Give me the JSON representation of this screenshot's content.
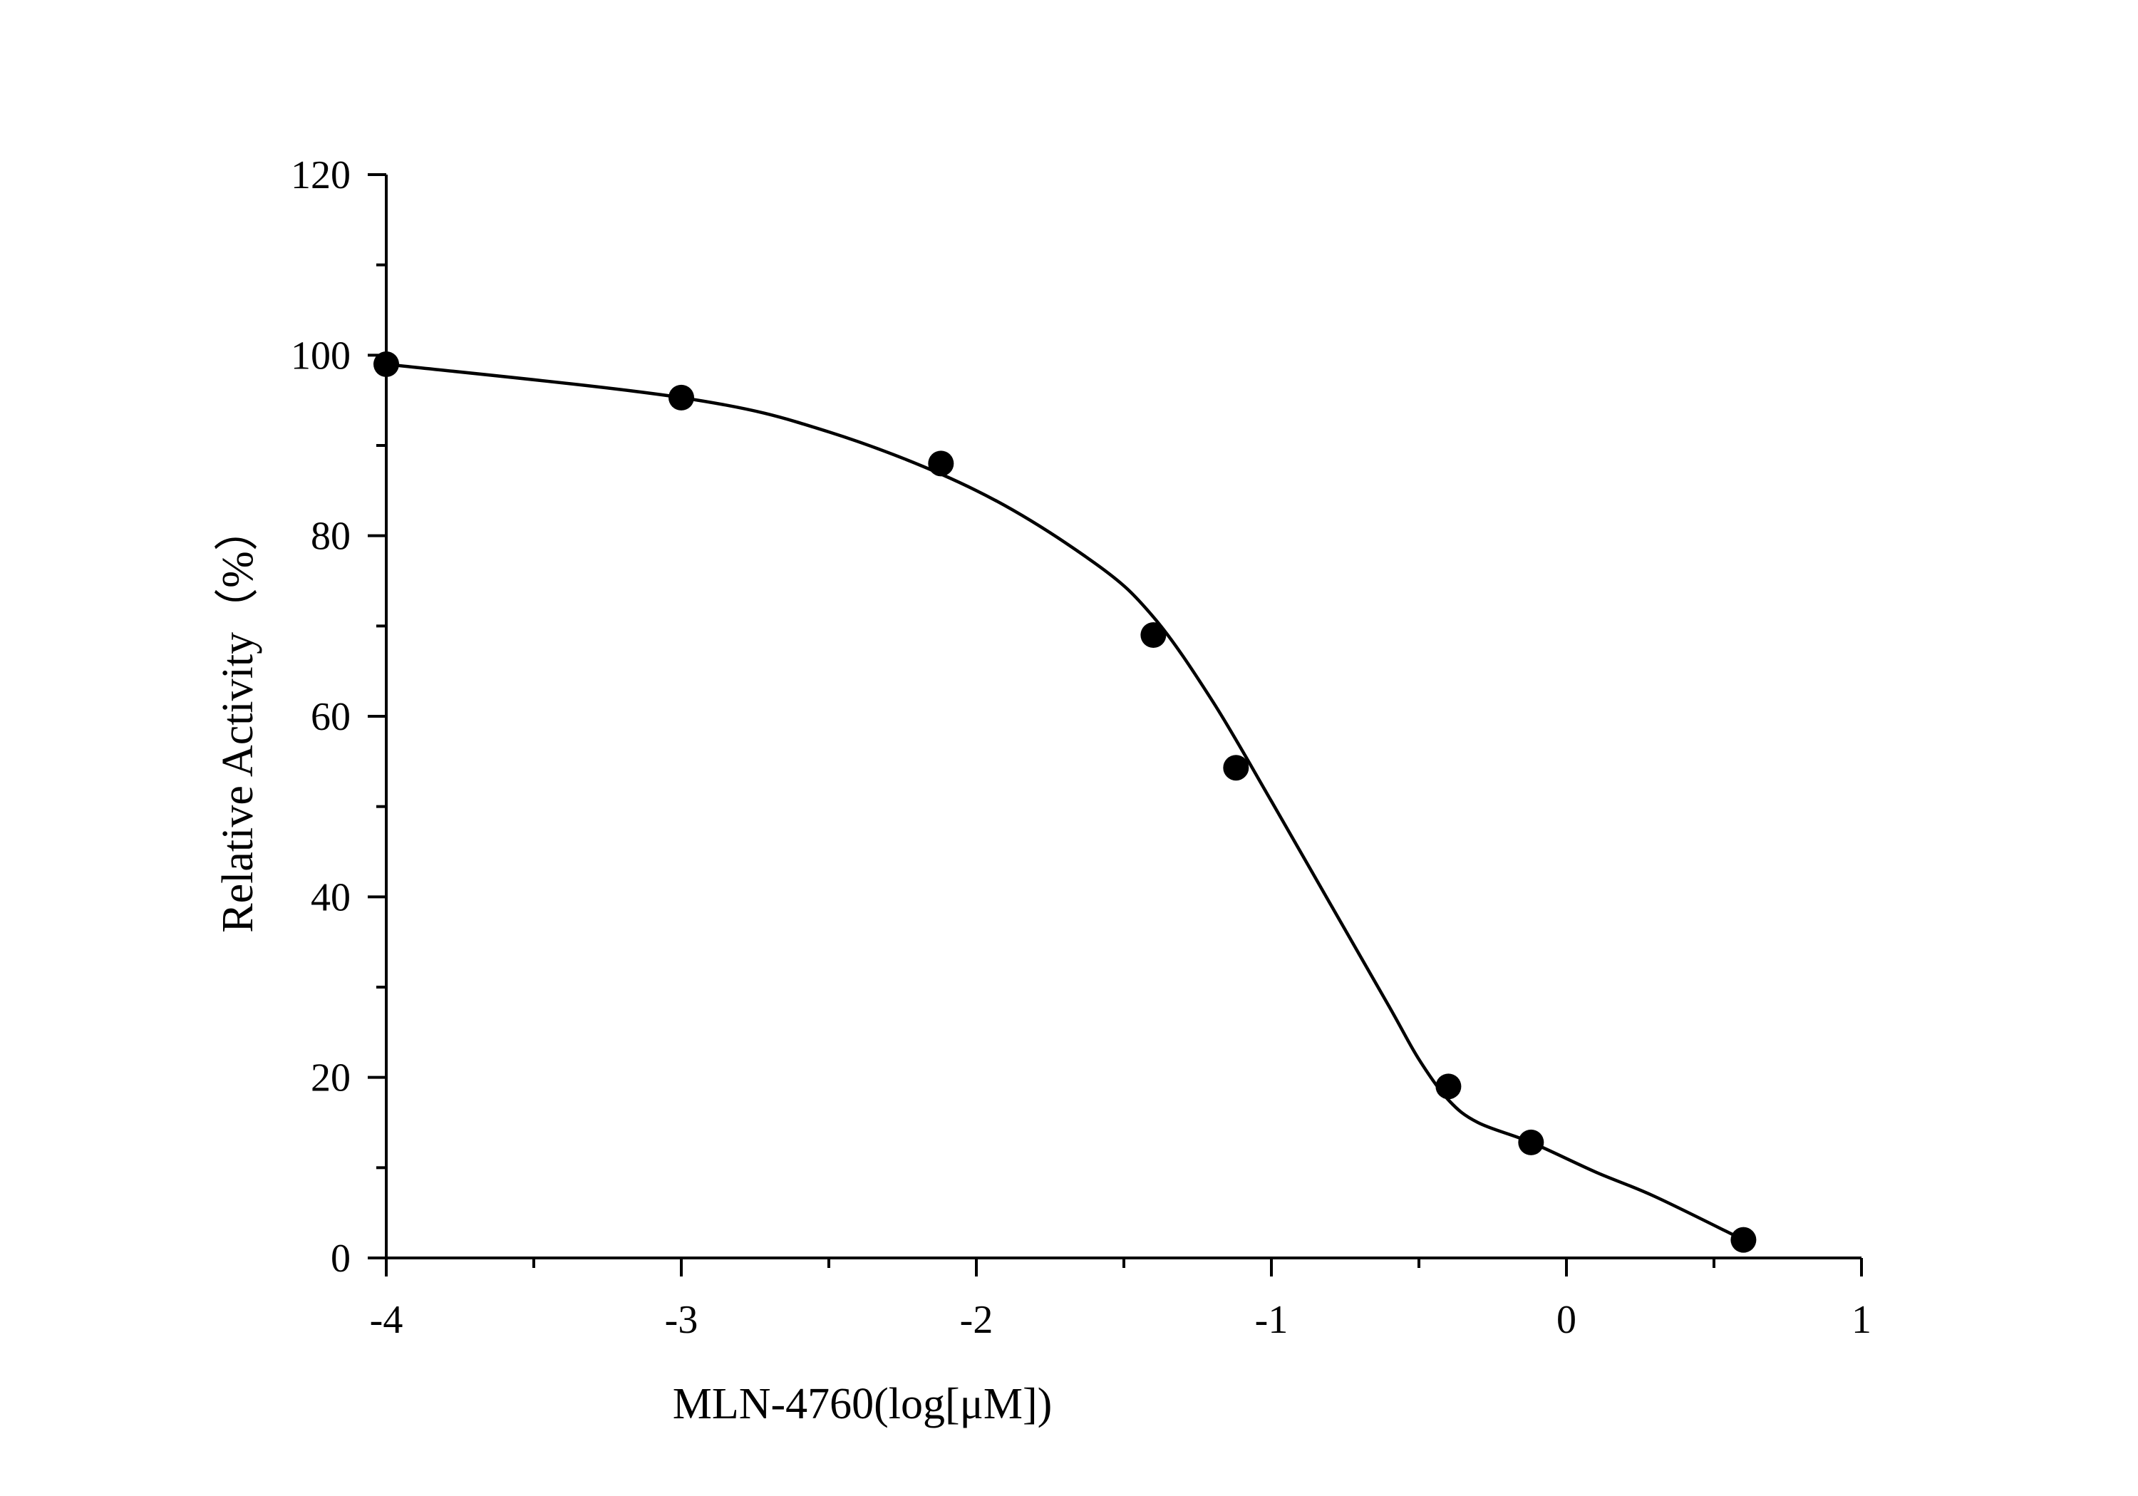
{
  "chart_data": {
    "type": "scatter",
    "xlabel": "MLN-4760(log[μM])",
    "ylabel": "Relative Activity（%）",
    "xlim": [
      -4,
      1
    ],
    "ylim": [
      0,
      120
    ],
    "x_ticks": [
      -4,
      -3,
      -2,
      -1,
      0,
      1
    ],
    "x_tick_labels": [
      "-4",
      "-3",
      "-2",
      "-1",
      "0",
      "1"
    ],
    "y_ticks": [
      0,
      20,
      40,
      60,
      80,
      100,
      120
    ],
    "y_tick_labels": [
      "0",
      "20",
      "40",
      "60",
      "80",
      "100",
      "120"
    ],
    "grid": false,
    "series": [
      {
        "kind": "points",
        "x": [
          -4.0,
          -3.0,
          -2.12,
          -1.4,
          -1.12,
          -0.4,
          -0.12,
          0.6
        ],
        "y": [
          99,
          95.3,
          88,
          69,
          54.3,
          19,
          12.8,
          2
        ]
      },
      {
        "kind": "fitted-curve",
        "x": [
          -4.0,
          -3.0,
          -2.5,
          -2.0,
          -1.6,
          -1.4,
          -1.2,
          -1.0,
          -0.8,
          -0.6,
          -0.5,
          -0.4,
          -0.3,
          -0.12,
          0.1,
          0.3,
          0.6
        ],
        "y": [
          99,
          95.3,
          91.5,
          85,
          77,
          71,
          61.7,
          50.6,
          39.2,
          27.8,
          22,
          17.5,
          15,
          12.8,
          9.5,
          6.8,
          2
        ]
      }
    ],
    "colors": {
      "axis": "#000000",
      "points": "#000000",
      "curve": "#000000"
    }
  }
}
